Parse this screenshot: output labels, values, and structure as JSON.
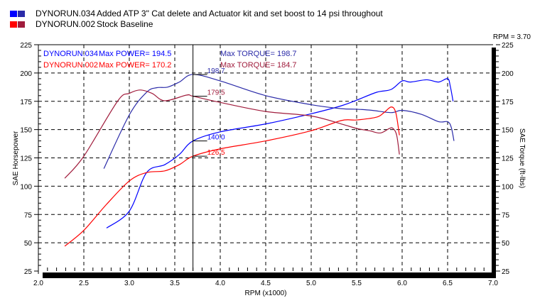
{
  "legend": [
    {
      "run": "DYNORUN.034",
      "description": "Added ATP 3\" Cat delete and Actuator kit and set boost to 14 psi throughout",
      "power_color": "#0000ff",
      "torque_color": "#2a2aa8"
    },
    {
      "run": "DYNORUN.002",
      "description": "Stock Baseline",
      "power_color": "#ff0000",
      "torque_color": "#a01c3c"
    }
  ],
  "annotations": {
    "run1_label": "DYNORUN.034",
    "run1_power": "Max POWER= 194.5",
    "run1_torque": "Max TORQUE= 198.7",
    "run2_label": "DYNORUN.002",
    "run2_power": "Max POWER= 170.2",
    "run2_torque": "Max TORQUE= 184.7",
    "cursor_readout": "RPM = 3.70",
    "cursor_values": [
      "198.7",
      "179.5",
      "140.0",
      "126.5"
    ]
  },
  "chart_data": {
    "type": "line",
    "title": "",
    "xlabel": "RPM (x1000)",
    "ylabel": "SAE Horsepower",
    "y2label": "SAE Torque (ft-lbs)",
    "xlim": [
      2.0,
      7.0
    ],
    "ylim": [
      25,
      225
    ],
    "y2lim": [
      25,
      225
    ],
    "xticks": [
      "2.0",
      "2.5",
      "3.0",
      "3.5",
      "4.0",
      "4.5",
      "5.0",
      "5.5",
      "6.0",
      "6.5",
      "7.0"
    ],
    "yticks": [
      "25",
      "50",
      "75",
      "100",
      "125",
      "150",
      "175",
      "200",
      "225"
    ],
    "grid": true,
    "cursor_rpm": 3.7,
    "series": [
      {
        "name": "DYNORUN.034 Power",
        "color": "#0000ff",
        "x": [
          2.75,
          3.0,
          3.19,
          3.39,
          3.55,
          3.7,
          4.0,
          4.5,
          5.0,
          5.33,
          5.5,
          5.72,
          5.88,
          6.0,
          6.09,
          6.27,
          6.4,
          6.5,
          6.53,
          6.56
        ],
        "y": [
          63,
          78,
          112,
          119,
          128,
          140,
          148,
          155,
          164,
          171,
          176,
          183,
          185.5,
          193,
          192,
          194,
          192,
          195,
          188,
          175
        ]
      },
      {
        "name": "DYNORUN.034 Torque",
        "color": "#2a2aa8",
        "x": [
          2.72,
          3.0,
          3.19,
          3.3,
          3.42,
          3.55,
          3.7,
          4.0,
          4.5,
          5.0,
          5.33,
          5.5,
          5.67,
          5.88,
          6.0,
          6.21,
          6.4,
          6.5,
          6.54,
          6.57
        ],
        "y": [
          115.5,
          163,
          183,
          187,
          187.5,
          192,
          198.7,
          193,
          180,
          172,
          168.5,
          168,
          167,
          165,
          167,
          163.5,
          157,
          157,
          152,
          140
        ]
      },
      {
        "name": "DYNORUN.002 Power",
        "color": "#ff0000",
        "x": [
          2.29,
          2.5,
          2.75,
          3.0,
          3.19,
          3.39,
          3.55,
          3.7,
          4.0,
          4.5,
          5.0,
          5.33,
          5.5,
          5.72,
          5.8,
          5.88,
          5.93,
          5.97
        ],
        "y": [
          47,
          61,
          84,
          104.6,
          112,
          113.5,
          119,
          126.5,
          133,
          140,
          149,
          158,
          158.5,
          161,
          165,
          170,
          165,
          145
        ]
      },
      {
        "name": "DYNORUN.002 Torque",
        "color": "#a01c3c",
        "x": [
          2.29,
          2.5,
          2.87,
          3.0,
          3.12,
          3.25,
          3.39,
          3.63,
          3.7,
          4.0,
          4.5,
          5.0,
          5.33,
          5.5,
          5.64,
          5.76,
          5.86,
          5.9,
          5.94,
          5.97
        ],
        "y": [
          107,
          126.5,
          175,
          182,
          185,
          182,
          175.5,
          180.5,
          179.5,
          174,
          166,
          162,
          155,
          151,
          149,
          147,
          151,
          151,
          145,
          128
        ]
      }
    ]
  }
}
